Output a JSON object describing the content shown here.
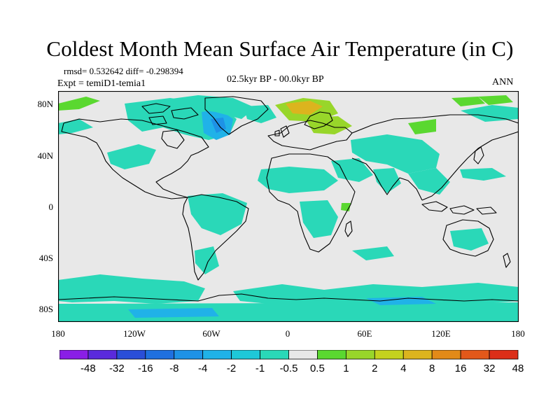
{
  "title": "Coldest Month Mean Surface Air Temperature (in C)",
  "stats": "rmsd= 0.532642 diff= -0.298394",
  "expt": "Expt = temiD1-temia1",
  "period": "02.5kyr BP - 00.0kyr BP",
  "season": "ANN",
  "lat_ticks": [
    "80N",
    "40N",
    "0",
    "40S",
    "80S"
  ],
  "lon_ticks": [
    "180",
    "120W",
    "60W",
    "0",
    "60E",
    "120E",
    "180"
  ],
  "colorbar": {
    "labels": [
      "-48",
      "-32",
      "-16",
      "-8",
      "-4",
      "-2",
      "-1",
      "-0.5",
      "0.5",
      "1",
      "2",
      "4",
      "8",
      "16",
      "32",
      "48"
    ],
    "colors": [
      "#8a1ee6",
      "#5a2adc",
      "#2a4ed8",
      "#1f70e0",
      "#1e92e6",
      "#20b2e8",
      "#1ec8d8",
      "#2ad8b8",
      "#e8e8e8",
      "#5ad830",
      "#98d62a",
      "#c4d21e",
      "#dcb41e",
      "#e28a18",
      "#e2581a",
      "#dc2e18"
    ]
  },
  "colors": {
    "neutral": "#e8e8e8",
    "cool_light": "#2ad8b8",
    "cool": "#1ec8d8",
    "cooler": "#20b2e8",
    "cold": "#1e92e6",
    "warm_light": "#5ad830",
    "warm": "#98d62a",
    "warmer": "#c4d21e",
    "hot": "#dcb41e"
  }
}
